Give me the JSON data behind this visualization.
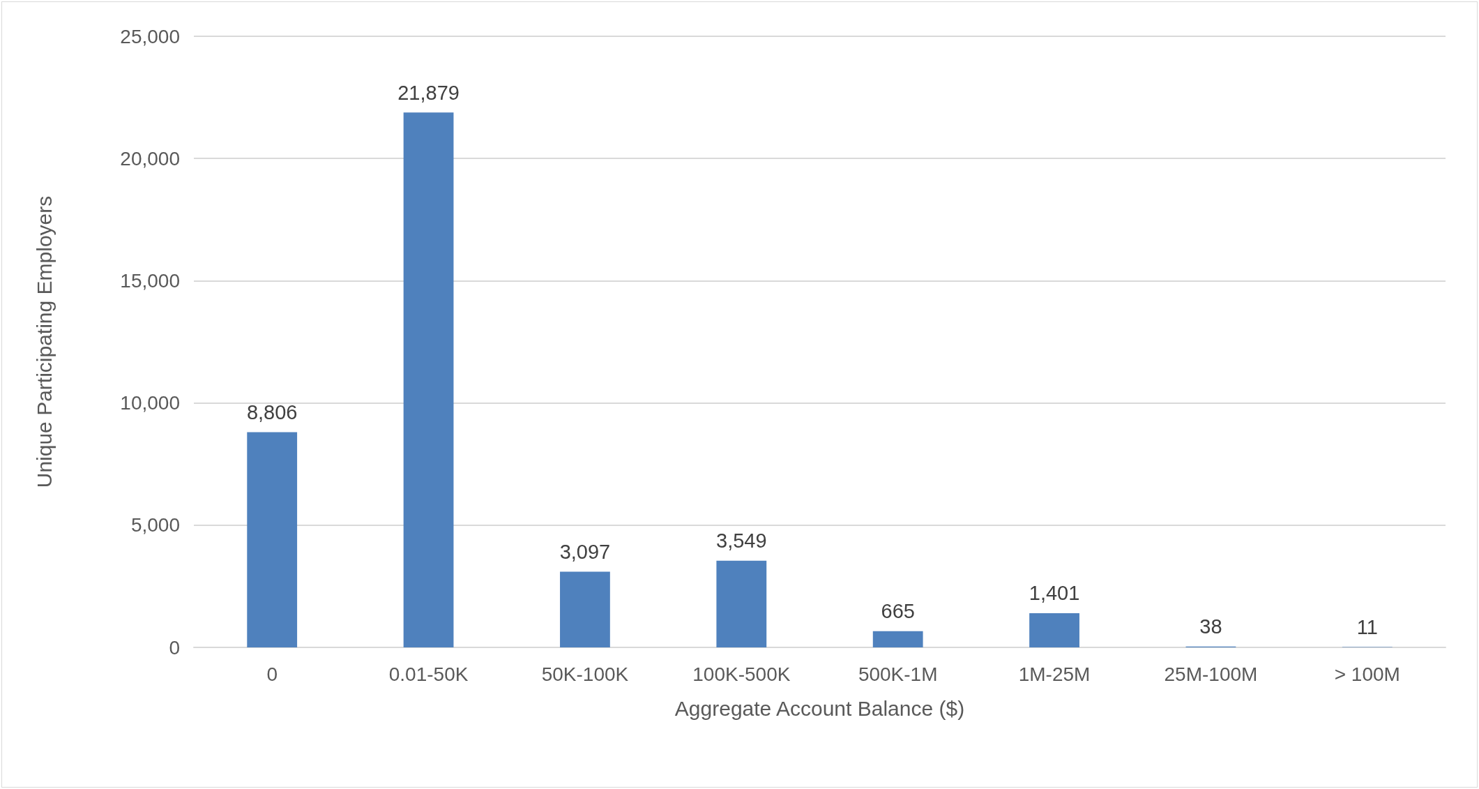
{
  "chart_data": {
    "type": "bar",
    "xlabel": "Aggregate Account Balance ($)",
    "ylabel": "Unique Participating Employers",
    "categories": [
      "0",
      "0.01-50K",
      "50K-100K",
      "100K-500K",
      "500K-1M",
      "1M-25M",
      "25M-100M",
      "> 100M"
    ],
    "values": [
      8806,
      21879,
      3097,
      3549,
      665,
      1401,
      38,
      11
    ],
    "value_labels": [
      "8,806",
      "21,879",
      "3,097",
      "3,549",
      "665",
      "1,401",
      "38",
      "11"
    ],
    "color": "#4f81bd",
    "ylim": [
      0,
      25000
    ],
    "yticks": [
      0,
      {
        "value": 5000,
        "label": "5,000"
      },
      {
        "value": 10000,
        "label": "10,000"
      },
      {
        "value": 15000,
        "label": "15,000"
      },
      {
        "value": 20000,
        "label": "20,000"
      },
      {
        "value": 25000,
        "label": "25,000"
      }
    ],
    "grid": "y"
  }
}
